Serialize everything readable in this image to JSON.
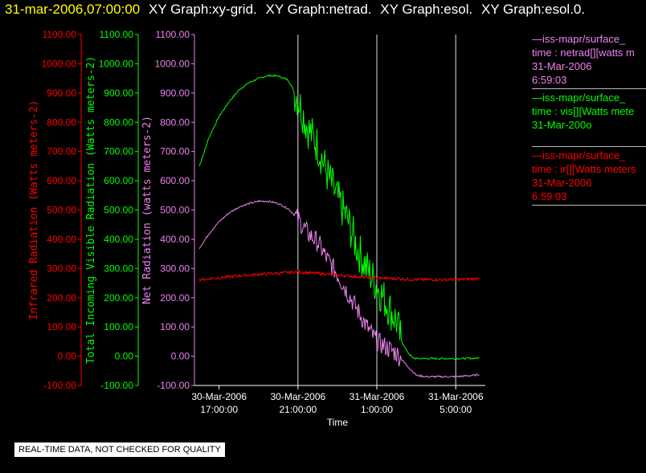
{
  "header": {
    "timestamp": "31-mar-2006,07:00:00",
    "titles": [
      "XY Graph:xy-grid.",
      "XY Graph:netrad.",
      "XY Graph:esol.",
      "XY Graph:esol.0."
    ]
  },
  "notice": "REAL-TIME DATA, NOT CHECKED FOR QUALITY",
  "legend": [
    {
      "color": "#ee82ee",
      "lines": [
        "—iss-mapr/surface_",
        "time : netrad[][watts m",
        "31-Mar-2006",
        "6:59:03"
      ]
    },
    {
      "color": "#00ff00",
      "lines": [
        "—iss-mapr/surface_",
        "time : vis[][Watts mete",
        "31-Mar-200o"
      ]
    },
    {
      "color": "#ff0000",
      "lines": [
        "—iss-mapr/surface_",
        "time : ir[][Watts meters",
        "31-Mar-2006",
        "6:59:03"
      ]
    }
  ],
  "chart_data": {
    "type": "line",
    "xlabel": "Time",
    "x_ticks": [
      {
        "line1": "30-Mar-2006",
        "line2": "17:00:00",
        "hour": 17
      },
      {
        "line1": "30-Mar-2006",
        "line2": "21:00:00",
        "hour": 21
      },
      {
        "line1": "31-Mar-2006",
        "line2": "1:00:00",
        "hour": 25
      },
      {
        "line1": "31-Mar-2006",
        "line2": "5:00:00",
        "hour": 29
      }
    ],
    "xlim_hours": [
      15.75,
      30.5
    ],
    "ylim": [
      -100,
      1100
    ],
    "y_ticks": [
      "-100.00",
      "0.00",
      "100.00",
      "200.00",
      "300.00",
      "400.00",
      "500.00",
      "600.00",
      "700.00",
      "800.00",
      "900.00",
      "1000.00",
      "1100.00"
    ],
    "axes": [
      {
        "label": "Infrared Radiation (Watts meters-2)",
        "color": "#ff0000"
      },
      {
        "label": "Total Incoming Visible Radiation (Watts meters-2)",
        "color": "#00ff00"
      },
      {
        "label": "Net Radiation (watts meters-2)",
        "color": "#ee82ee"
      }
    ],
    "series": [
      {
        "name": "vis",
        "color": "#00ff00",
        "noise": 70,
        "noise_range": [
          20.8,
          26.2
        ],
        "points": [
          [
            16,
            650
          ],
          [
            16.5,
            750
          ],
          [
            17,
            820
          ],
          [
            17.5,
            870
          ],
          [
            18,
            910
          ],
          [
            18.5,
            935
          ],
          [
            19,
            950
          ],
          [
            19.5,
            960
          ],
          [
            20,
            958
          ],
          [
            20.5,
            945
          ],
          [
            21,
            880
          ],
          [
            21.5,
            780
          ],
          [
            22,
            720
          ],
          [
            22.5,
            620
          ],
          [
            23,
            540
          ],
          [
            23.5,
            470
          ],
          [
            24,
            370
          ],
          [
            24.5,
            300
          ],
          [
            25,
            240
          ],
          [
            25.5,
            180
          ],
          [
            26,
            120
          ],
          [
            26.2,
            60
          ],
          [
            26.5,
            20
          ],
          [
            26.8,
            -5
          ],
          [
            27,
            -8
          ],
          [
            28,
            -8
          ],
          [
            29,
            -8
          ],
          [
            30,
            -7
          ],
          [
            30.2,
            -5
          ]
        ]
      },
      {
        "name": "netrad",
        "color": "#ee82ee",
        "noise": 35,
        "noise_range": [
          20.8,
          26.2
        ],
        "points": [
          [
            16,
            370
          ],
          [
            16.5,
            420
          ],
          [
            17,
            460
          ],
          [
            17.5,
            490
          ],
          [
            18,
            510
          ],
          [
            18.5,
            522
          ],
          [
            19,
            530
          ],
          [
            19.5,
            530
          ],
          [
            20,
            522
          ],
          [
            20.5,
            505
          ],
          [
            21,
            470
          ],
          [
            21.5,
            420
          ],
          [
            22,
            390
          ],
          [
            22.5,
            330
          ],
          [
            23,
            280
          ],
          [
            23.5,
            220
          ],
          [
            24,
            160
          ],
          [
            24.5,
            100
          ],
          [
            25,
            50
          ],
          [
            25.5,
            30
          ],
          [
            26,
            10
          ],
          [
            26.5,
            -30
          ],
          [
            27,
            -65
          ],
          [
            27.5,
            -70
          ],
          [
            28,
            -70
          ],
          [
            29,
            -70
          ],
          [
            30,
            -65
          ],
          [
            30.2,
            -62
          ]
        ]
      },
      {
        "name": "ir",
        "color": "#ff0000",
        "noise": 5,
        "noise_range": [
          16,
          30.2
        ],
        "points": [
          [
            16,
            262
          ],
          [
            17,
            268
          ],
          [
            18,
            275
          ],
          [
            19,
            280
          ],
          [
            20,
            284
          ],
          [
            21,
            288
          ],
          [
            22,
            283
          ],
          [
            23,
            278
          ],
          [
            24,
            272
          ],
          [
            25,
            268
          ],
          [
            26,
            265
          ],
          [
            27,
            262
          ],
          [
            28,
            262
          ],
          [
            29,
            262
          ],
          [
            30,
            265
          ],
          [
            30.2,
            272
          ]
        ]
      }
    ]
  }
}
